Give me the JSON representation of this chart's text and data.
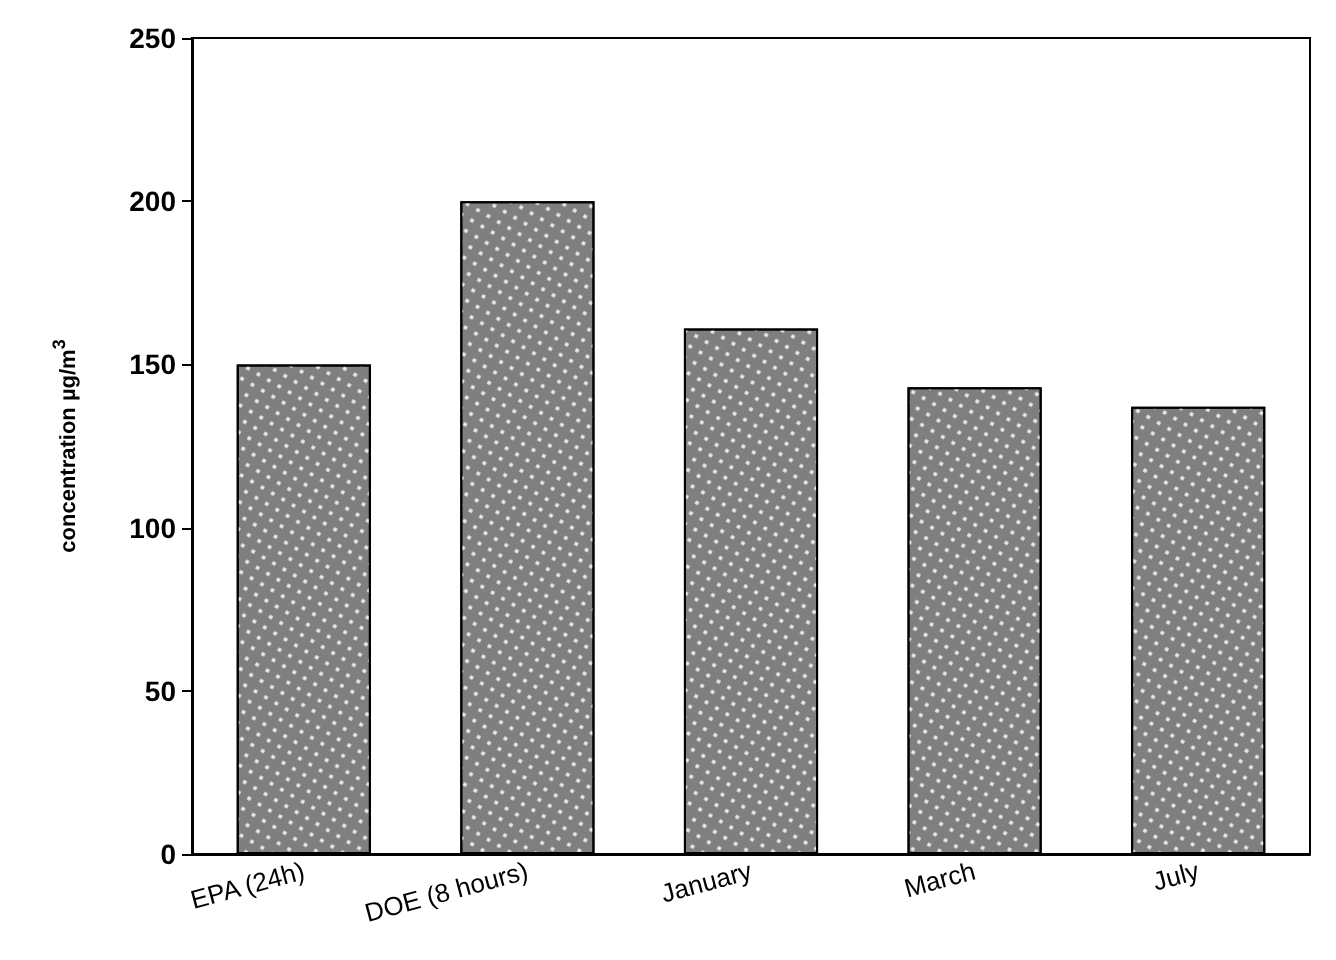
{
  "chart_data": {
    "type": "bar",
    "ylabel": "concentration µg/m$^{3}$",
    "categories": [
      "EPA (24h)",
      "DOE (8 hours)",
      "January",
      "March",
      "July"
    ],
    "values": [
      150,
      200,
      161,
      143,
      137
    ],
    "color": "#7f7f7f",
    "ylim": [
      0,
      250
    ],
    "yticks": [
      0,
      50,
      100,
      150,
      200,
      250
    ],
    "grid": false
  }
}
